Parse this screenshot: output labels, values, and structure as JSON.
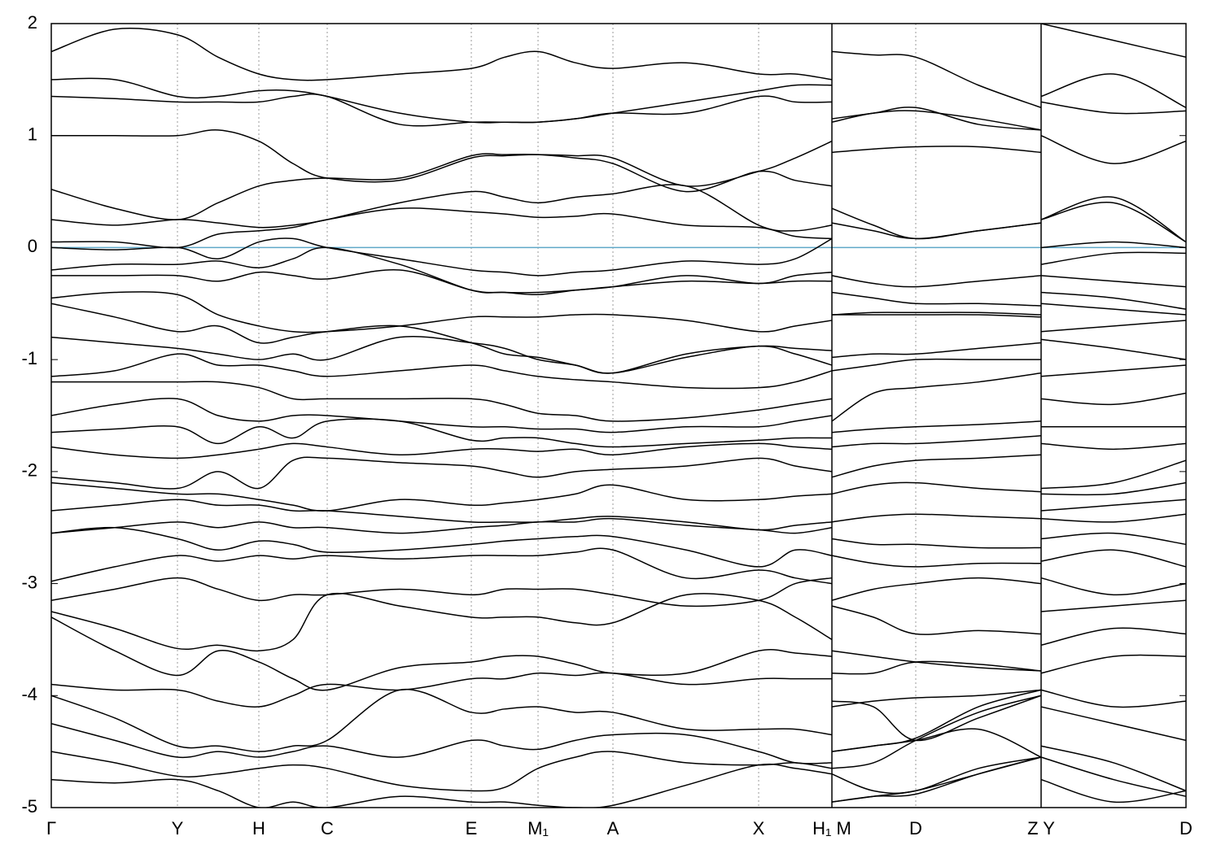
{
  "chart_data": {
    "type": "line",
    "x": [
      0,
      0.78,
      1.55,
      2.05,
      2.55,
      2.97,
      3.39,
      4.28,
      5.16,
      5.57,
      5.98,
      6.44,
      6.9,
      7.8,
      8.69,
      9.14,
      9.59,
      9.59,
      9.59,
      10.1,
      10.62,
      11.39,
      12.16,
      12.16,
      12.16,
      13.05,
      13.94
    ],
    "xlim": [
      0,
      13.94
    ],
    "ylim": [
      -5,
      2
    ],
    "xticks": [
      {
        "value": 0,
        "label": "Γ"
      },
      {
        "value": 1.55,
        "label": "Y"
      },
      {
        "value": 2.55,
        "label": "H"
      },
      {
        "value": 3.39,
        "label": "C"
      },
      {
        "value": 5.16,
        "label": "E"
      },
      {
        "value": 5.98,
        "label": "M₁"
      },
      {
        "value": 6.9,
        "label": "A"
      },
      {
        "value": 8.69,
        "label": "X"
      },
      {
        "value": 9.59,
        "label": "H₁ M"
      },
      {
        "value": 10.62,
        "label": "D"
      },
      {
        "value": 12.16,
        "label": "Z Y"
      },
      {
        "value": 13.94,
        "label": "D"
      }
    ],
    "yticks": [
      -5,
      -4,
      -3,
      -2,
      -1,
      0,
      1,
      2
    ],
    "xgrid": true,
    "line_color": "#000000",
    "hline": 0,
    "hline_color": "#5fa8c8",
    "series": [
      {
        "values": [
          1.75,
          1.95,
          1.9,
          1.7,
          1.55,
          1.5,
          1.5,
          1.55,
          1.6,
          1.7,
          1.75,
          1.65,
          1.6,
          1.65,
          1.55,
          1.55,
          1.5,
          null,
          1.75,
          1.72,
          1.7,
          1.45,
          1.25,
          null,
          2.0,
          1.85,
          1.7
        ]
      },
      {
        "values": [
          1.5,
          1.5,
          1.35,
          1.35,
          1.4,
          1.4,
          1.35,
          1.2,
          1.12,
          1.12,
          1.12,
          1.15,
          1.2,
          1.3,
          1.4,
          1.45,
          1.45,
          null,
          1.15,
          1.2,
          1.25,
          1.1,
          1.05,
          null,
          1.35,
          1.55,
          1.25
        ]
      },
      {
        "values": [
          1.35,
          1.33,
          1.3,
          1.3,
          1.3,
          1.35,
          1.35,
          1.1,
          1.12,
          1.12,
          1.12,
          1.15,
          1.2,
          1.2,
          1.35,
          1.3,
          1.3,
          null,
          1.12,
          1.2,
          1.22,
          1.15,
          1.05,
          null,
          1.3,
          1.2,
          1.22
        ]
      },
      {
        "values": [
          1.0,
          1.0,
          1.0,
          1.05,
          0.95,
          0.75,
          0.62,
          0.6,
          0.8,
          0.82,
          0.83,
          0.82,
          0.8,
          0.55,
          0.68,
          0.8,
          0.95,
          null,
          0.85,
          0.88,
          0.9,
          0.9,
          0.85,
          null,
          1.0,
          0.75,
          0.95
        ]
      },
      {
        "values": [
          0.52,
          0.35,
          0.25,
          0.4,
          0.55,
          0.6,
          0.62,
          0.62,
          0.82,
          0.83,
          0.83,
          0.8,
          0.75,
          0.5,
          0.68,
          0.6,
          0.55,
          null,
          0.35,
          0.2,
          0.08,
          0.15,
          0.22,
          null,
          0.25,
          0.45,
          0.05
        ]
      },
      {
        "values": [
          0.25,
          0.2,
          0.25,
          0.22,
          0.18,
          0.2,
          0.25,
          0.4,
          0.5,
          0.45,
          0.4,
          0.45,
          0.48,
          0.55,
          0.2,
          0.15,
          0.2,
          null,
          0.22,
          0.15,
          0.08,
          0.15,
          0.22,
          null,
          0.25,
          0.4,
          0.05
        ]
      },
      {
        "values": [
          0.05,
          0.05,
          0.0,
          0.12,
          0.15,
          0.18,
          0.25,
          0.35,
          0.32,
          0.3,
          0.27,
          0.28,
          0.3,
          0.2,
          0.18,
          0.1,
          0.08,
          null,
          -0.25,
          -0.32,
          -0.35,
          -0.3,
          -0.25,
          null,
          0.0,
          0.05,
          0.0
        ]
      },
      {
        "values": [
          0.0,
          -0.02,
          0.0,
          -0.1,
          0.05,
          0.08,
          0.0,
          -0.1,
          -0.2,
          -0.22,
          -0.25,
          -0.22,
          -0.2,
          -0.12,
          -0.15,
          -0.1,
          0.08,
          null,
          -0.4,
          -0.45,
          -0.5,
          -0.5,
          -0.52,
          null,
          -0.15,
          -0.05,
          -0.05
        ]
      },
      {
        "values": [
          -0.2,
          -0.15,
          -0.15,
          -0.12,
          -0.18,
          -0.1,
          0.0,
          -0.15,
          -0.38,
          -0.4,
          -0.42,
          -0.38,
          -0.35,
          -0.25,
          -0.32,
          -0.25,
          -0.22,
          null,
          -0.6,
          -0.58,
          -0.58,
          -0.58,
          -0.6,
          null,
          -0.25,
          -0.3,
          -0.35
        ]
      },
      {
        "values": [
          -0.25,
          -0.25,
          -0.25,
          -0.3,
          -0.22,
          -0.25,
          -0.28,
          -0.2,
          -0.38,
          -0.4,
          -0.4,
          -0.38,
          -0.35,
          -0.3,
          -0.32,
          -0.3,
          -0.3,
          null,
          -0.6,
          -0.6,
          -0.6,
          -0.6,
          -0.62,
          null,
          -0.4,
          -0.45,
          -0.55
        ]
      },
      {
        "values": [
          -0.45,
          -0.4,
          -0.42,
          -0.6,
          -0.7,
          -0.75,
          -0.75,
          -0.7,
          -0.62,
          -0.62,
          -0.62,
          -0.6,
          -0.6,
          -0.65,
          -0.75,
          -0.7,
          -0.65,
          null,
          -0.98,
          -0.95,
          -0.95,
          -0.9,
          -0.85,
          null,
          -0.5,
          -0.55,
          -0.6
        ]
      },
      {
        "values": [
          -0.5,
          -0.62,
          -0.75,
          -0.7,
          -0.85,
          -0.8,
          -0.75,
          -0.7,
          -0.85,
          -0.95,
          -0.98,
          -1.05,
          -1.12,
          -0.95,
          -0.88,
          -0.9,
          -0.92,
          null,
          -1.1,
          -1.05,
          -1.0,
          -1.0,
          -1.0,
          null,
          -0.75,
          -0.7,
          -0.65
        ]
      },
      {
        "values": [
          -0.8,
          -0.85,
          -0.9,
          -0.95,
          -1.0,
          -0.95,
          -1.0,
          -0.8,
          -0.85,
          -0.9,
          -1.0,
          -1.05,
          -1.12,
          -0.98,
          -0.88,
          -0.95,
          -1.05,
          null,
          -1.55,
          -1.3,
          -1.25,
          -1.2,
          -1.12,
          null,
          -0.82,
          -0.9,
          -1.0
        ]
      },
      {
        "values": [
          -1.15,
          -1.1,
          -0.95,
          -1.05,
          -1.05,
          -1.1,
          -1.15,
          -1.1,
          -1.05,
          -1.1,
          -1.15,
          -1.18,
          -1.2,
          -1.25,
          -1.25,
          -1.2,
          -1.1,
          null,
          -1.65,
          -1.62,
          -1.6,
          -1.58,
          -1.55,
          null,
          -1.15,
          -1.1,
          -1.05
        ]
      },
      {
        "values": [
          -1.2,
          -1.2,
          -1.2,
          -1.2,
          -1.25,
          -1.35,
          -1.35,
          -1.35,
          -1.35,
          -1.4,
          -1.48,
          -1.5,
          -1.55,
          -1.52,
          -1.45,
          -1.4,
          -1.35,
          null,
          -1.78,
          -1.75,
          -1.75,
          -1.72,
          -1.68,
          null,
          -1.35,
          -1.4,
          -1.3
        ]
      },
      {
        "values": [
          -1.5,
          -1.4,
          -1.35,
          -1.5,
          -1.55,
          -1.5,
          -1.5,
          -1.55,
          -1.6,
          -1.6,
          -1.62,
          -1.62,
          -1.65,
          -1.6,
          -1.6,
          -1.55,
          -1.5,
          null,
          -2.05,
          -1.95,
          -1.9,
          -1.88,
          -1.85,
          null,
          -1.6,
          -1.6,
          -1.6
        ]
      },
      {
        "values": [
          -1.65,
          -1.62,
          -1.6,
          -1.75,
          -1.6,
          -1.7,
          -1.55,
          -1.55,
          -1.72,
          -1.7,
          -1.7,
          -1.75,
          -1.78,
          -1.75,
          -1.72,
          -1.7,
          -1.7,
          null,
          -2.2,
          -2.12,
          -2.1,
          -2.15,
          -2.18,
          null,
          -1.75,
          -1.8,
          -1.75
        ]
      },
      {
        "values": [
          -1.78,
          -1.85,
          -1.88,
          -1.85,
          -1.8,
          -1.75,
          -1.78,
          -1.85,
          -1.8,
          -1.8,
          -1.82,
          -1.8,
          -1.85,
          -1.78,
          -1.75,
          -1.78,
          -1.8,
          null,
          -2.45,
          -2.4,
          -2.38,
          -2.4,
          -2.42,
          null,
          -2.15,
          -2.1,
          -1.9
        ]
      },
      {
        "values": [
          -2.05,
          -2.1,
          -2.15,
          -2.0,
          -2.15,
          -1.9,
          -1.88,
          -1.92,
          -1.95,
          -2.0,
          -2.05,
          -2.0,
          -1.98,
          -1.95,
          -1.88,
          -1.95,
          -2.0,
          null,
          -2.6,
          -2.65,
          -2.65,
          -2.68,
          -2.68,
          null,
          -2.2,
          -2.2,
          -2.1
        ]
      },
      {
        "values": [
          -2.1,
          -2.15,
          -2.2,
          -2.2,
          -2.25,
          -2.3,
          -2.35,
          -2.25,
          -2.3,
          -2.28,
          -2.25,
          -2.2,
          -2.12,
          -2.25,
          -2.25,
          -2.22,
          -2.2,
          null,
          -2.75,
          -2.82,
          -2.85,
          -2.82,
          -2.82,
          null,
          -2.35,
          -2.3,
          -2.25
        ]
      },
      {
        "values": [
          -2.35,
          -2.3,
          -2.25,
          -2.3,
          -2.3,
          -2.35,
          -2.35,
          -2.4,
          -2.45,
          -2.45,
          -2.45,
          -2.42,
          -2.4,
          -2.45,
          -2.52,
          -2.48,
          -2.45,
          null,
          -3.15,
          -3.05,
          -3.0,
          -2.95,
          -3.0,
          null,
          -2.42,
          -2.45,
          -2.38
        ]
      },
      {
        "values": [
          -2.55,
          -2.5,
          -2.45,
          -2.5,
          -2.45,
          -2.5,
          -2.5,
          -2.55,
          -2.5,
          -2.48,
          -2.45,
          -2.45,
          -2.42,
          -2.48,
          -2.52,
          -2.55,
          -2.5,
          null,
          -3.2,
          -3.3,
          -3.45,
          -3.42,
          -3.45,
          null,
          -2.6,
          -2.55,
          -2.65
        ]
      },
      {
        "values": [
          -2.55,
          -2.5,
          -2.6,
          -2.7,
          -2.62,
          -2.65,
          -2.72,
          -2.7,
          -2.65,
          -2.62,
          -2.6,
          -2.58,
          -2.58,
          -2.7,
          -2.85,
          -2.7,
          -2.75,
          null,
          -3.6,
          -3.65,
          -3.7,
          -3.75,
          -3.78,
          null,
          -2.8,
          -2.7,
          -2.85
        ]
      },
      {
        "values": [
          -2.98,
          -2.85,
          -2.75,
          -2.8,
          -2.75,
          -2.78,
          -2.75,
          -2.78,
          -2.75,
          -2.75,
          -2.75,
          -2.72,
          -2.7,
          -2.95,
          -2.88,
          -2.95,
          -3.0,
          null,
          -3.8,
          -3.8,
          -3.7,
          -3.72,
          -3.78,
          null,
          -2.95,
          -3.1,
          -3.0
        ]
      },
      {
        "values": [
          -3.15,
          -3.05,
          -2.95,
          -3.05,
          -3.15,
          -3.1,
          -3.1,
          -3.05,
          -3.1,
          -3.05,
          -3.05,
          -3.05,
          -3.1,
          -3.2,
          -3.15,
          -3.0,
          -2.95,
          null,
          -4.1,
          -4.05,
          -4.02,
          -4.0,
          -3.95,
          null,
          -3.25,
          -3.2,
          -3.15
        ]
      },
      {
        "values": [
          -3.25,
          -3.4,
          -3.58,
          -3.55,
          -3.6,
          -3.5,
          -3.1,
          -3.2,
          -3.3,
          -3.3,
          -3.3,
          -3.35,
          -3.35,
          -3.1,
          -3.15,
          -3.3,
          -3.5,
          null,
          -4.5,
          -4.45,
          -4.4,
          -4.3,
          -4.55,
          null,
          -3.55,
          -3.4,
          -3.45
        ]
      },
      {
        "values": [
          -3.3,
          -3.6,
          -3.82,
          -3.6,
          -3.7,
          -3.85,
          -3.95,
          -3.75,
          -3.7,
          -3.65,
          -3.65,
          -3.72,
          -3.8,
          -3.8,
          -3.6,
          -3.62,
          -3.65,
          null,
          -4.7,
          -4.85,
          -4.85,
          -4.65,
          -4.55,
          null,
          -3.8,
          -3.65,
          -3.65
        ]
      },
      {
        "values": [
          -3.9,
          -3.95,
          -3.95,
          -4.05,
          -4.1,
          -4.0,
          -3.9,
          -3.95,
          -3.85,
          -3.85,
          -3.8,
          -3.82,
          -3.8,
          -3.9,
          -3.85,
          -3.85,
          -3.85,
          null,
          -4.95,
          -4.9,
          -4.85,
          -4.7,
          -4.55,
          null,
          -3.95,
          -4.1,
          -4.05
        ]
      },
      {
        "values": [
          -4.0,
          -4.2,
          -4.45,
          -4.45,
          -4.5,
          -4.45,
          -4.4,
          -3.95,
          -4.15,
          -4.12,
          -4.1,
          -4.15,
          -4.15,
          -4.3,
          -4.3,
          -4.3,
          -4.35,
          null,
          -4.05,
          -4.1,
          -4.4,
          -4.2,
          -4.0,
          null,
          -4.1,
          -4.25,
          -4.4
        ]
      },
      {
        "values": [
          -4.25,
          -4.4,
          -4.55,
          -4.5,
          -4.55,
          -4.5,
          -4.45,
          -4.55,
          -4.4,
          -4.45,
          -4.48,
          -4.4,
          -4.35,
          -4.35,
          -4.5,
          -4.6,
          -4.6,
          null,
          -4.5,
          -4.45,
          -4.38,
          -4.1,
          -3.95,
          null,
          -4.45,
          -4.6,
          -4.85
        ]
      },
      {
        "values": [
          -4.5,
          -4.6,
          -4.72,
          -4.7,
          -4.65,
          -4.62,
          -4.65,
          -4.8,
          -4.85,
          -4.82,
          -4.65,
          -4.55,
          -4.5,
          -4.6,
          -4.62,
          -4.6,
          -4.65,
          null,
          -4.65,
          -4.6,
          -4.4,
          -4.15,
          -4.0,
          null,
          -4.55,
          -4.75,
          -4.9
        ]
      },
      {
        "values": [
          -4.75,
          -4.78,
          -4.75,
          -4.85,
          -5.0,
          -4.95,
          -5.0,
          -4.9,
          -4.95,
          -4.95,
          -4.98,
          -5.0,
          -4.98,
          -4.8,
          -4.62,
          -4.65,
          -4.7,
          null,
          -4.95,
          -4.9,
          -4.88,
          -4.7,
          -4.55,
          null,
          -4.75,
          -4.95,
          -4.85
        ]
      }
    ]
  }
}
